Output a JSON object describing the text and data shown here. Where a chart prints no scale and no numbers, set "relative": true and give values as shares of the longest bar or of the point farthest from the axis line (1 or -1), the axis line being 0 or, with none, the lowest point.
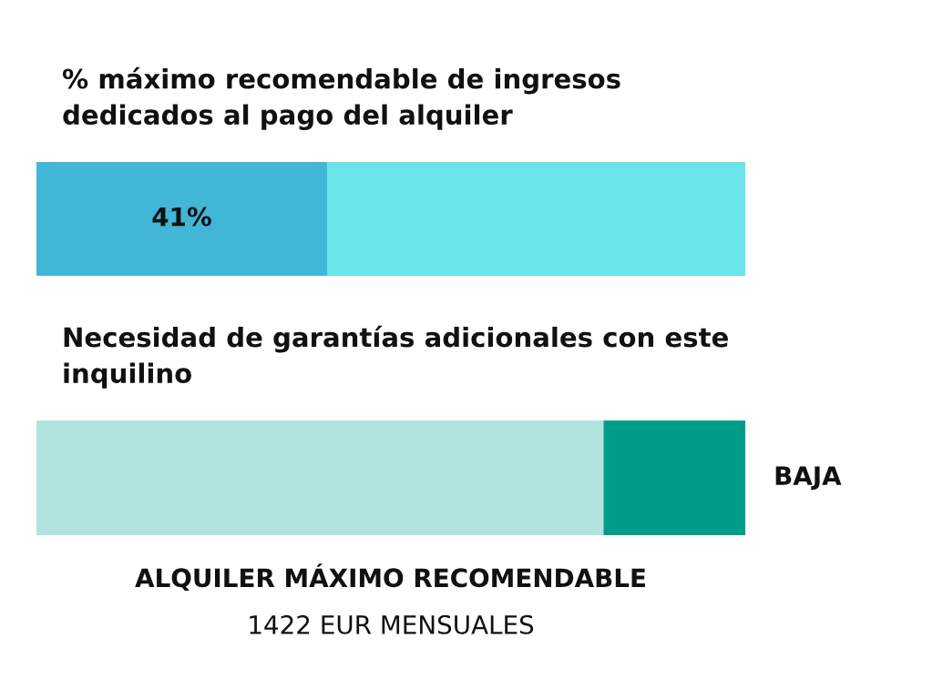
{
  "chart_data": [
    {
      "type": "bar",
      "orientation": "horizontal",
      "stacked": true,
      "title": "% máximo recomendable de ingresos\ndedicados al pago del alquiler",
      "categories": [
        null
      ],
      "xlim": [
        0,
        100
      ],
      "series": [
        {
          "color": "#41b6d6",
          "values": [
            41
          ],
          "value_labels": [
            "41%"
          ]
        },
        {
          "color": "#6ae4e8",
          "values": [
            59
          ]
        }
      ]
    },
    {
      "type": "bar",
      "orientation": "horizontal",
      "stacked": true,
      "relative": true,
      "title": "Necesidad de garantías adicionales con este\ninquilino",
      "categories": [
        null
      ],
      "series": [
        {
          "color": "#b1e4de",
          "values": [
            0.8
          ]
        },
        {
          "color": "#009e89",
          "values": [
            0.2
          ]
        }
      ],
      "annotations": [
        "BAJA",
        "ALQUILER MÁXIMO RECOMENDABLE",
        "1422 EUR MENSUALES"
      ]
    }
  ]
}
